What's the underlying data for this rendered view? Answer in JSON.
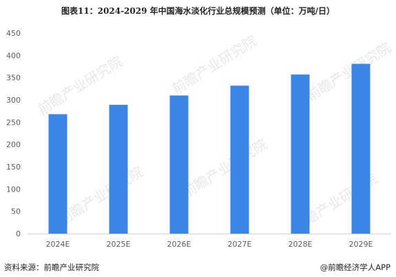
{
  "title": "图表11：2024-2029 年中国海水淡化行业总规模预测（单位：万吨/日）",
  "chart_data": {
    "type": "bar",
    "categories": [
      "2024E",
      "2025E",
      "2026E",
      "2027E",
      "2028E",
      "2029E"
    ],
    "values": [
      268,
      289,
      310,
      332,
      357,
      381
    ],
    "ylim": [
      0,
      450
    ],
    "yticks": [
      0,
      50,
      100,
      150,
      200,
      250,
      300,
      350,
      400,
      450
    ],
    "grid": false,
    "legend": "none",
    "bar_color": "#3a86e6",
    "axis_color": "#d0d0d0",
    "tick_label_color": "#595959"
  },
  "watermark": "前瞻产业研究院",
  "footer": {
    "source": "资料来源：前瞻产业研究院",
    "credit": "@前瞻经济学人APP"
  }
}
